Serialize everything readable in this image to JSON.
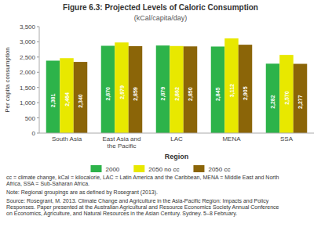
{
  "chart_data": {
    "type": "bar",
    "title": "Figure 6.3:  Projected Levels of Caloric Consumption",
    "subtitle": "(kCal/capita/day)",
    "categories": [
      "South Asia",
      "East Asia and\nthe Pacific",
      "LAC",
      "MENA",
      "SSA"
    ],
    "series": [
      {
        "name": "2000",
        "color": "#2db34a",
        "values": [
          2381,
          2870,
          2879,
          2845,
          2282
        ],
        "value_labels": [
          "2,381",
          "2,870",
          "2,879",
          "2,845",
          "2,282"
        ]
      },
      {
        "name": "2050 no cc",
        "color": "#e8e800",
        "values": [
          2464,
          2979,
          2862,
          3112,
          2570
        ],
        "value_labels": [
          "2,464",
          "2,979",
          "2,862",
          "3,112",
          "2,570"
        ]
      },
      {
        "name": "2050 cc",
        "color": "#8B6508",
        "values": [
          2340,
          2859,
          2850,
          2905,
          2277
        ],
        "value_labels": [
          "2,340",
          "2,859",
          "2,850",
          "2,905",
          "2,277"
        ]
      }
    ],
    "y_label": "Per capita consumption",
    "x_label": "Region",
    "ylim": [
      0,
      3500
    ],
    "yticks": [
      0,
      500,
      {
        "value": 1000,
        "label": "1,000"
      },
      {
        "value": 1500,
        "label": "1,500"
      },
      {
        "value": 2000,
        "label": "2,000"
      },
      {
        "value": 2500,
        "label": "2,500"
      },
      {
        "value": 3000,
        "label": "3,000"
      },
      {
        "value": 3500,
        "label": "3,500"
      }
    ],
    "grid": false,
    "legend": "bottom",
    "data_labels": true,
    "annotations": [
      "cc = climate change, kCal = kilocalorie, LAC = Latin America and the Caribbean, MENA = Middle East and North\nAfrica, SSA = Sub-Saharan Africa.",
      "Note: Regional groupings are as defined by Rosegrant (2013).",
      "Source: Rosegrant, M. 2013. Climate Change and Agriculture in the Asia-Pacific Region: Impacts and Policy\nResponses. Paper presented at the Australian Agricultural and Resource Economics Society Annual Conference\non Economics, Agriculture, and Natural Resources in the Asian Century. Sydney. 5–8 February."
    ]
  }
}
